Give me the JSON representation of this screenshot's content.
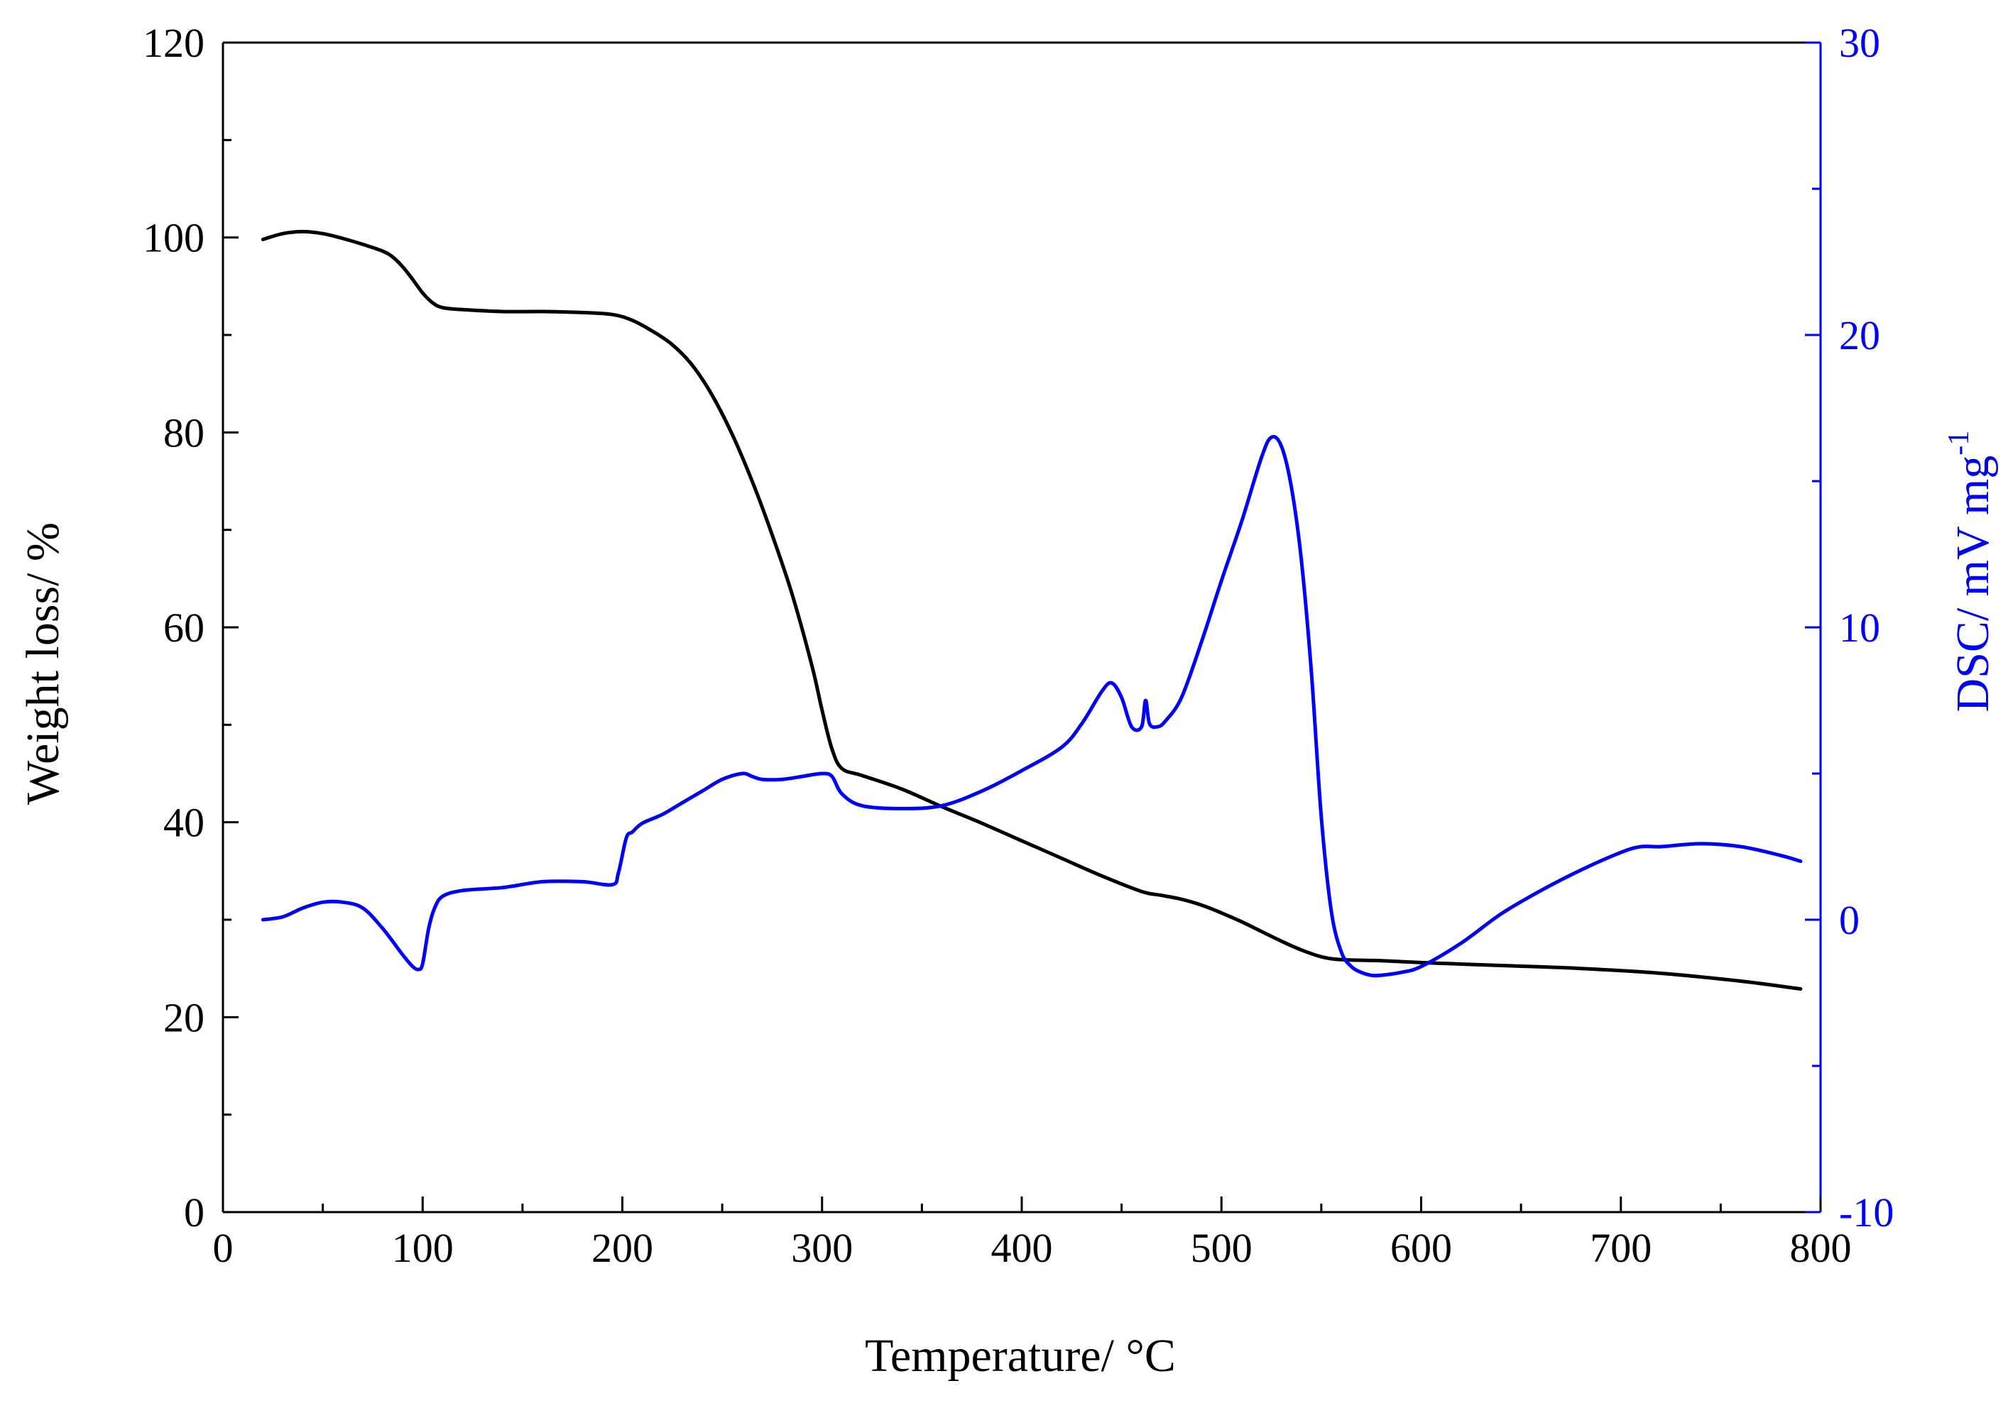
{
  "chart_data": {
    "type": "line",
    "xlabel": "Temperature/ °C",
    "ylabel": "Weight loss/ %",
    "y2label": "DSC/ mV mg",
    "y2label_superscript": "-1",
    "xlim": [
      0,
      800
    ],
    "ylim": [
      0,
      120
    ],
    "y2lim": [
      -10,
      30
    ],
    "xticks": [
      0,
      100,
      200,
      300,
      400,
      500,
      600,
      700,
      800
    ],
    "yticks": [
      0,
      20,
      40,
      60,
      80,
      100,
      120
    ],
    "y2ticks": [
      -10,
      0,
      10,
      20,
      30
    ],
    "grid": false,
    "legend": "none",
    "colors": {
      "weight": "#000000",
      "dsc": "#0000ff",
      "axis": "#000000",
      "right_axis": "#0000ff"
    },
    "series": [
      {
        "axis": "left",
        "color": "#000000",
        "x": [
          20,
          30,
          40,
          50,
          60,
          70,
          80,
          85,
          90,
          95,
          100,
          105,
          110,
          120,
          140,
          160,
          180,
          195,
          205,
          215,
          225,
          235,
          245,
          255,
          265,
          275,
          285,
          295,
          300,
          305,
          310,
          320,
          340,
          360,
          380,
          400,
          420,
          440,
          460,
          470,
          480,
          490,
          500,
          510,
          520,
          530,
          540,
          550,
          560,
          580,
          600,
          640,
          680,
          720,
          760,
          790
        ],
        "y": [
          99.8,
          100.4,
          100.6,
          100.4,
          99.9,
          99.3,
          98.6,
          98.0,
          97.0,
          95.7,
          94.3,
          93.3,
          92.8,
          92.6,
          92.4,
          92.4,
          92.3,
          92.1,
          91.5,
          90.4,
          89.0,
          86.9,
          83.8,
          79.8,
          75.0,
          69.5,
          63.4,
          56.0,
          51.5,
          47.5,
          45.5,
          44.8,
          43.4,
          41.6,
          39.9,
          38.1,
          36.3,
          34.5,
          32.9,
          32.5,
          32.1,
          31.5,
          30.7,
          29.8,
          28.8,
          27.8,
          26.9,
          26.2,
          25.9,
          25.8,
          25.6,
          25.3,
          25.0,
          24.5,
          23.7,
          22.9
        ]
      },
      {
        "axis": "right",
        "color": "#0000ff",
        "x": [
          20,
          30,
          40,
          50,
          60,
          70,
          80,
          90,
          95,
          98,
          100,
          103,
          106,
          110,
          120,
          140,
          160,
          180,
          195,
          198,
          202,
          205,
          210,
          220,
          230,
          240,
          250,
          260,
          265,
          270,
          280,
          290,
          300,
          305,
          310,
          320,
          340,
          360,
          380,
          400,
          420,
          430,
          440,
          445,
          450,
          455,
          460,
          462,
          464,
          468,
          472,
          480,
          490,
          500,
          510,
          520,
          525,
          530,
          535,
          540,
          545,
          550,
          555,
          560,
          565,
          570,
          575,
          580,
          590,
          600,
          620,
          640,
          660,
          680,
          700,
          710,
          720,
          740,
          760,
          780,
          790
        ],
        "y": [
          0.0,
          0.1,
          0.4,
          0.6,
          0.6,
          0.4,
          -0.3,
          -1.2,
          -1.6,
          -1.7,
          -1.5,
          -0.3,
          0.4,
          0.8,
          1.0,
          1.1,
          1.3,
          1.3,
          1.2,
          1.6,
          2.8,
          3.0,
          3.3,
          3.6,
          4.0,
          4.4,
          4.8,
          5.0,
          4.9,
          4.8,
          4.8,
          4.9,
          5.0,
          4.9,
          4.3,
          3.9,
          3.8,
          3.9,
          4.4,
          5.1,
          5.9,
          6.7,
          7.8,
          8.1,
          7.6,
          6.6,
          6.6,
          7.5,
          6.7,
          6.6,
          6.8,
          7.6,
          9.5,
          11.6,
          13.6,
          15.8,
          16.5,
          16.2,
          14.8,
          12.3,
          8.5,
          3.5,
          0.3,
          -1.1,
          -1.6,
          -1.8,
          -1.9,
          -1.9,
          -1.8,
          -1.6,
          -0.8,
          0.2,
          1.0,
          1.7,
          2.3,
          2.5,
          2.5,
          2.6,
          2.5,
          2.2,
          2.0
        ]
      }
    ]
  }
}
